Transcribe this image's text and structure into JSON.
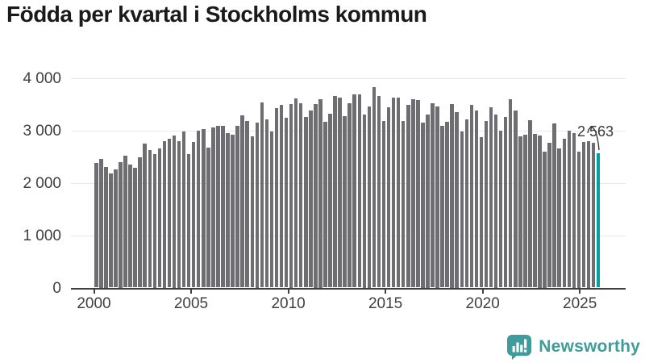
{
  "title": "Födda per kvartal i Stockholms kommun",
  "chart_data": {
    "type": "bar",
    "title": "Födda per kvartal i Stockholms kommun",
    "x_start": "2000-Q1",
    "frequency": "quarterly",
    "values": [
      2370,
      2450,
      2300,
      2180,
      2260,
      2400,
      2520,
      2340,
      2280,
      2480,
      2740,
      2620,
      2550,
      2660,
      2800,
      2840,
      2900,
      2800,
      2970,
      2540,
      2780,
      2990,
      3030,
      2670,
      3060,
      3080,
      3080,
      2940,
      2910,
      3090,
      3290,
      3170,
      2880,
      3150,
      3530,
      3210,
      2980,
      3420,
      3480,
      3240,
      3500,
      3610,
      3520,
      3260,
      3370,
      3500,
      3600,
      3160,
      3310,
      3660,
      3620,
      3270,
      3520,
      3680,
      3690,
      3300,
      3450,
      3820,
      3660,
      3180,
      3440,
      3630,
      3630,
      3170,
      3480,
      3590,
      3570,
      3150,
      3300,
      3520,
      3450,
      3080,
      3160,
      3500,
      3350,
      2980,
      3210,
      3480,
      3380,
      2870,
      3180,
      3440,
      3300,
      2990,
      3260,
      3590,
      3370,
      2890,
      2910,
      3190,
      2930,
      2900,
      2600,
      2760,
      3130,
      2660,
      2840,
      2990,
      2950,
      2600,
      2770,
      2800,
      2760,
      2563
    ],
    "highlight": {
      "index": 103,
      "value": 2563,
      "label": "2 563"
    },
    "x_tick_labels": [
      "2000",
      "2005",
      "2010",
      "2015",
      "2020",
      "2025"
    ],
    "y_tick_labels": [
      "0",
      "1 000",
      "2 000",
      "3 000",
      "4 000"
    ],
    "y_tick_values": [
      0,
      1000,
      2000,
      3000,
      4000
    ],
    "ylim": [
      0,
      4000
    ],
    "grid": "horizontal",
    "legend": "none"
  },
  "colors": {
    "bar": "#6d6d72",
    "highlight": "#00a0a5",
    "grid": "#e8e8e8",
    "axis": "#404040",
    "tick_text": "#3f3f3f",
    "title_text": "#1a1a1a",
    "annotation_text": "#3a3a3a",
    "brand": "#3f9c9c"
  },
  "branding": {
    "name": "Newsworthy"
  }
}
